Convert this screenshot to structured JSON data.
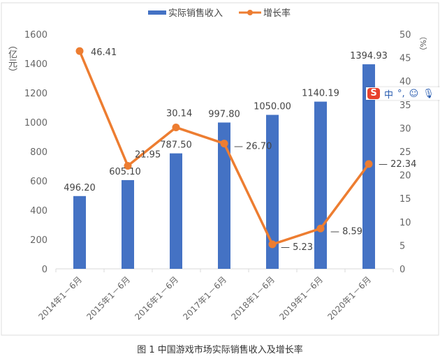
{
  "chart_data": {
    "type": "bar+line",
    "categories": [
      "2014年1－6月",
      "2015年1－6月",
      "2016年1－6月",
      "2017年1－6月",
      "2018年1－6月",
      "2019年1－6月",
      "2020年1－6月"
    ],
    "series": [
      {
        "name": "实际销售收入",
        "type": "bar",
        "axis": "left",
        "color": "#4472c4",
        "values": [
          496.2,
          605.1,
          787.5,
          997.8,
          1050.0,
          1140.19,
          1394.93
        ],
        "labels": [
          "496.20",
          "605.10",
          "787.50",
          "997.80",
          "1050.00",
          "1140.19",
          "1394.93"
        ]
      },
      {
        "name": "增长率",
        "type": "line",
        "axis": "right",
        "color": "#ed7d31",
        "values": [
          46.41,
          21.95,
          30.14,
          26.7,
          5.23,
          8.59,
          22.34
        ],
        "labels": [
          "46.41",
          "21.95",
          "30.14",
          "26.70",
          "5.23",
          "8.59",
          "22.34"
        ]
      }
    ],
    "ylabel_left": "（亿元）",
    "ylabel_right": "（%）",
    "ylim_left": [
      0,
      1600
    ],
    "yticks_left": [
      "0",
      "200",
      "400",
      "600",
      "800",
      "1000",
      "1200",
      "1400",
      "1600"
    ],
    "ylim_right": [
      0,
      50
    ],
    "yticks_right": [
      "0",
      "5",
      "10",
      "15",
      "20",
      "25",
      "30",
      "35",
      "40",
      "45",
      "50"
    ],
    "grid": false,
    "legend": "top",
    "caption": "图 1 中国游戏市场实际销售收入及增长率"
  },
  "ime_toolbar": {
    "logo": "S",
    "mode": "中",
    "punct": "°,",
    "emoji_icon": "smiley-icon",
    "mic_icon": "microphone-icon"
  }
}
